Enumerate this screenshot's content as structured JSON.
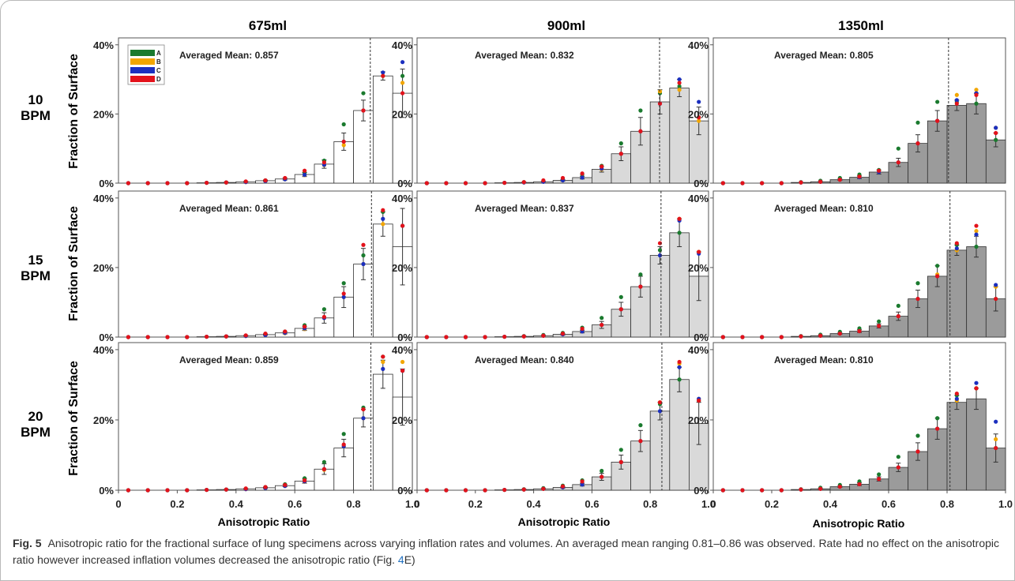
{
  "figure": {
    "caption": {
      "label": "Fig. 5",
      "text_before_ref": "Anisotropic ratio for the fractional surface of lung specimens across varying inflation rates and volumes. An averaged mean ranging 0.81–0.86 was observed. Rate had no effect on the anisotropic ratio however increased inflation volumes decreased the anisotropic ratio (Fig. ",
      "ref_number": "4",
      "text_after_ref": "E)"
    },
    "columns": [
      "675ml",
      "900ml",
      "1350ml"
    ],
    "rows": [
      {
        "line1": "10",
        "line2": "BPM"
      },
      {
        "line1": "15",
        "line2": "BPM"
      },
      {
        "line1": "20",
        "line2": "BPM"
      }
    ],
    "ylabel": "Fraction of Surface",
    "xlabel": "Anisotropic Ratio",
    "legend": [
      "A",
      "B",
      "C",
      "D"
    ],
    "mean_prefix": "Averaged Mean: "
  },
  "colors": {
    "A": "#1a7a2e",
    "B": "#f2a600",
    "C": "#1b2fbf",
    "D": "#e3121b",
    "bar_675": "#ffffff",
    "bar_900": "#d9d9d9",
    "bar_1350": "#9b9b9b",
    "frame": "#b9b9b9",
    "ref_link": "#1f6fbf"
  },
  "chart_data": {
    "type": "bar",
    "x": [
      0.0,
      0.067,
      0.133,
      0.2,
      0.267,
      0.333,
      0.4,
      0.467,
      0.533,
      0.6,
      0.667,
      0.733,
      0.8,
      0.867,
      0.933
    ],
    "xticks": [
      0,
      0.2,
      0.4,
      0.6,
      0.8,
      1.0
    ],
    "xtick_labels": [
      "0",
      "0.2",
      "0.4",
      "0.6",
      "0.8",
      "1.0"
    ],
    "yticks": [
      0,
      20,
      40
    ],
    "ytick_labels": [
      "0%",
      "20%",
      "40%"
    ],
    "ylim": [
      0,
      42
    ],
    "xlim": [
      0,
      1.0
    ],
    "panels": [
      {
        "row": 0,
        "col": 0,
        "mean": 0.857,
        "mean_label": "0.857",
        "values": [
          0,
          0,
          0,
          0,
          0.1,
          0.2,
          0.4,
          0.7,
          1.2,
          2.5,
          5.5,
          12,
          21,
          31,
          26
        ],
        "err": [
          0,
          0,
          0,
          0,
          0,
          0.1,
          0.1,
          0.2,
          0.3,
          0.6,
          1.2,
          2.5,
          3,
          1.2,
          7
        ],
        "dots": {
          "A": [
            0,
            0,
            0,
            0,
            0.1,
            0.2,
            0.4,
            0.8,
            1.4,
            3,
            6.5,
            17,
            26,
            31,
            31
          ],
          "B": [
            0,
            0,
            0,
            0,
            0.1,
            0.2,
            0.3,
            0.6,
            1.1,
            2.3,
            5.2,
            11,
            21,
            31,
            29
          ],
          "C": [
            0,
            0,
            0,
            0,
            0.1,
            0.2,
            0.3,
            0.6,
            1.1,
            2.4,
            5.3,
            12,
            21,
            32,
            35
          ],
          "D": [
            0,
            0,
            0,
            0,
            0.1,
            0.2,
            0.5,
            0.8,
            1.5,
            3.6,
            6,
            12,
            21,
            31,
            26
          ]
        }
      },
      {
        "row": 0,
        "col": 1,
        "mean": 0.832,
        "mean_label": "0.832",
        "values": [
          0,
          0,
          0,
          0,
          0.1,
          0.2,
          0.4,
          0.8,
          1.6,
          4,
          8.5,
          15,
          23.5,
          27.5,
          18
        ],
        "err": [
          0,
          0,
          0,
          0,
          0,
          0.1,
          0.1,
          0.2,
          0.4,
          0.8,
          2,
          4,
          3.5,
          2.5,
          4
        ],
        "dots": {
          "A": [
            0,
            0,
            0,
            0,
            0.1,
            0.3,
            0.6,
            1.2,
            2.5,
            5,
            11.5,
            21,
            26,
            28,
            19
          ],
          "B": [
            0,
            0,
            0,
            0,
            0.1,
            0.2,
            0.4,
            0.8,
            1.6,
            4,
            8.5,
            15,
            26.5,
            27,
            18
          ],
          "C": [
            0,
            0,
            0,
            0,
            0.1,
            0.2,
            0.4,
            0.8,
            1.6,
            4.2,
            8.5,
            15,
            23,
            30,
            23.5
          ],
          "D": [
            0,
            0,
            0,
            0,
            0.1,
            0.3,
            0.8,
            1.5,
            2.8,
            4.8,
            8.5,
            15,
            23,
            29,
            19
          ]
        }
      },
      {
        "row": 0,
        "col": 2,
        "mean": 0.805,
        "mean_label": "0.805",
        "values": [
          0,
          0,
          0,
          0,
          0.2,
          0.4,
          1,
          1.7,
          3.2,
          6,
          11.5,
          18,
          22.5,
          23,
          12.5
        ],
        "err": [
          0,
          0,
          0,
          0,
          0,
          0.1,
          0.2,
          0.4,
          0.6,
          1.2,
          2.5,
          3,
          1.5,
          3,
          2
        ],
        "dots": {
          "A": [
            0,
            0,
            0,
            0,
            0.3,
            0.7,
            1.5,
            2.5,
            3.8,
            10,
            17.5,
            23.5,
            23.5,
            23,
            12.5
          ],
          "B": [
            0,
            0,
            0,
            0,
            0.2,
            0.4,
            1,
            1.7,
            3.2,
            6,
            11.5,
            18,
            25.5,
            27,
            16
          ],
          "C": [
            0,
            0,
            0,
            0,
            0.2,
            0.4,
            1,
            1.7,
            3.2,
            6,
            11.5,
            18,
            24,
            26,
            16
          ],
          "D": [
            0,
            0,
            0,
            0,
            0.2,
            0.4,
            1,
            1.9,
            3.6,
            6,
            11.5,
            18,
            23,
            25.5,
            14.5
          ]
        }
      },
      {
        "row": 1,
        "col": 0,
        "mean": 0.861,
        "mean_label": "0.861",
        "values": [
          0,
          0,
          0,
          0,
          0.1,
          0.2,
          0.4,
          0.7,
          1.2,
          2.5,
          5.5,
          11.5,
          21,
          32.5,
          26
        ],
        "err": [
          0,
          0,
          0,
          0,
          0,
          0.1,
          0.1,
          0.2,
          0.3,
          0.6,
          1.5,
          3,
          4.5,
          3.5,
          11
        ],
        "dots": {
          "A": [
            0,
            0,
            0,
            0,
            0.1,
            0.2,
            0.4,
            0.9,
            1.6,
            3.4,
            8,
            15.5,
            23.5,
            36,
            32
          ],
          "B": [
            0,
            0,
            0,
            0,
            0.1,
            0.2,
            0.3,
            0.6,
            1.1,
            2.3,
            5.5,
            11.5,
            21,
            32.5,
            32
          ],
          "C": [
            0,
            0,
            0,
            0,
            0.1,
            0.2,
            0.3,
            0.6,
            1.2,
            2.5,
            5.5,
            11.5,
            21,
            34,
            32
          ],
          "D": [
            0,
            0,
            0,
            0,
            0.1,
            0.2,
            0.5,
            1,
            1.6,
            3,
            5.8,
            12.5,
            26.5,
            36.5,
            32
          ]
        }
      },
      {
        "row": 1,
        "col": 1,
        "mean": 0.837,
        "mean_label": "0.837",
        "values": [
          0,
          0,
          0,
          0,
          0.1,
          0.2,
          0.4,
          0.8,
          1.6,
          3.5,
          8,
          14.5,
          23.5,
          30,
          17.5
        ],
        "err": [
          0,
          0,
          0,
          0,
          0,
          0.1,
          0.1,
          0.2,
          0.4,
          1,
          2,
          3,
          2.5,
          4,
          7
        ],
        "dots": {
          "A": [
            0,
            0,
            0,
            0,
            0.1,
            0.3,
            0.6,
            1.2,
            2.7,
            5.5,
            11.5,
            18,
            25,
            30,
            24.5
          ],
          "B": [
            0,
            0,
            0,
            0,
            0.1,
            0.2,
            0.4,
            0.8,
            1.6,
            3.5,
            8,
            14.5,
            23.5,
            34,
            24.5
          ],
          "C": [
            0,
            0,
            0,
            0,
            0.1,
            0.2,
            0.4,
            0.8,
            1.6,
            3.5,
            8,
            14.5,
            23.5,
            33.5,
            24
          ],
          "D": [
            0,
            0,
            0,
            0,
            0.1,
            0.2,
            0.4,
            1,
            2.4,
            3.5,
            8,
            14.5,
            27,
            34,
            24.5
          ]
        }
      },
      {
        "row": 1,
        "col": 2,
        "mean": 0.81,
        "mean_label": "0.810",
        "values": [
          0,
          0,
          0,
          0,
          0.2,
          0.4,
          1,
          1.7,
          3.2,
          6,
          11,
          17.5,
          25,
          26,
          11
        ],
        "err": [
          0,
          0,
          0,
          0,
          0,
          0.1,
          0.2,
          0.4,
          0.6,
          1.2,
          2.5,
          3,
          1.5,
          3,
          3.5
        ],
        "dots": {
          "A": [
            0,
            0,
            0,
            0,
            0.3,
            0.7,
            1.5,
            2.5,
            4.5,
            9,
            15.5,
            20.5,
            26.5,
            26,
            11
          ],
          "B": [
            0,
            0,
            0,
            0,
            0.2,
            0.4,
            1,
            1.7,
            3.2,
            6,
            11,
            18,
            25,
            30.5,
            14.5
          ],
          "C": [
            0,
            0,
            0,
            0,
            0.2,
            0.4,
            1,
            1.7,
            3.2,
            6,
            11,
            17.5,
            25.5,
            29.5,
            15
          ],
          "D": [
            0,
            0,
            0,
            0,
            0.2,
            0.4,
            1,
            1.7,
            3.2,
            6,
            11,
            17.5,
            27,
            32,
            11
          ]
        }
      },
      {
        "row": 2,
        "col": 0,
        "mean": 0.859,
        "mean_label": "0.859",
        "values": [
          0,
          0,
          0,
          0,
          0.1,
          0.2,
          0.4,
          0.7,
          1.3,
          2.6,
          6,
          12,
          20.5,
          33,
          26.5
        ],
        "err": [
          0,
          0,
          0,
          0,
          0,
          0.1,
          0.1,
          0.2,
          0.3,
          0.6,
          1.5,
          2.5,
          2.5,
          4,
          8
        ],
        "dots": {
          "A": [
            0,
            0,
            0,
            0,
            0.1,
            0.2,
            0.4,
            0.9,
            1.7,
            3.4,
            8,
            16,
            23.5,
            38,
            34
          ],
          "B": [
            0,
            0,
            0,
            0,
            0.1,
            0.2,
            0.3,
            0.6,
            1.2,
            2.4,
            5.8,
            12.5,
            20.5,
            36.5,
            36.5
          ],
          "C": [
            0,
            0,
            0,
            0,
            0.1,
            0.2,
            0.3,
            0.6,
            1.2,
            2.5,
            6,
            12.5,
            20.5,
            34.5,
            34
          ],
          "D": [
            0,
            0,
            0,
            0,
            0.1,
            0.2,
            0.5,
            0.9,
            1.5,
            2.8,
            6,
            13,
            23,
            38,
            34
          ]
        }
      },
      {
        "row": 2,
        "col": 1,
        "mean": 0.84,
        "mean_label": "0.840",
        "values": [
          0,
          0,
          0,
          0,
          0.1,
          0.2,
          0.4,
          0.8,
          1.6,
          3.8,
          8,
          14,
          22.5,
          31.5,
          19
        ],
        "err": [
          0,
          0,
          0,
          0,
          0,
          0.1,
          0.1,
          0.2,
          0.4,
          1,
          2,
          3,
          2.5,
          3.5,
          6
        ],
        "dots": {
          "A": [
            0,
            0,
            0,
            0,
            0.1,
            0.3,
            0.6,
            1.3,
            2.8,
            5.5,
            11.5,
            18.5,
            24.5,
            31.5,
            25.5
          ],
          "B": [
            0,
            0,
            0,
            0,
            0.1,
            0.2,
            0.4,
            0.8,
            1.6,
            3.8,
            8,
            14,
            25,
            36,
            26
          ],
          "C": [
            0,
            0,
            0,
            0,
            0.1,
            0.2,
            0.4,
            0.8,
            1.6,
            3.8,
            8,
            14,
            22.5,
            35,
            26
          ],
          "D": [
            0,
            0,
            0,
            0,
            0.1,
            0.2,
            0.4,
            1.1,
            2.5,
            3.8,
            8,
            14,
            25,
            36.5,
            25.5
          ]
        }
      },
      {
        "row": 2,
        "col": 2,
        "mean": 0.81,
        "mean_label": "0.810",
        "values": [
          0,
          0,
          0,
          0,
          0.2,
          0.4,
          1,
          1.7,
          3.2,
          6.5,
          11,
          17.5,
          25,
          26,
          12
        ],
        "err": [
          0,
          0,
          0,
          0,
          0,
          0.1,
          0.2,
          0.4,
          0.6,
          1.2,
          2.5,
          3,
          2,
          3,
          4
        ],
        "dots": {
          "A": [
            0,
            0,
            0,
            0,
            0.3,
            0.7,
            1.5,
            2.5,
            4.5,
            9.5,
            15.5,
            20.5,
            27,
            29,
            12
          ],
          "B": [
            0,
            0,
            0,
            0,
            0.2,
            0.4,
            1,
            1.7,
            3.2,
            6.5,
            11,
            17.5,
            25.5,
            29,
            14.5
          ],
          "C": [
            0,
            0,
            0,
            0,
            0.2,
            0.4,
            1,
            1.7,
            3.2,
            6.5,
            11,
            17.5,
            26,
            30.5,
            19.5
          ],
          "D": [
            0,
            0,
            0,
            0,
            0.2,
            0.4,
            1,
            1.7,
            3.2,
            6.5,
            11,
            17.5,
            27.5,
            29,
            12
          ]
        }
      }
    ]
  }
}
